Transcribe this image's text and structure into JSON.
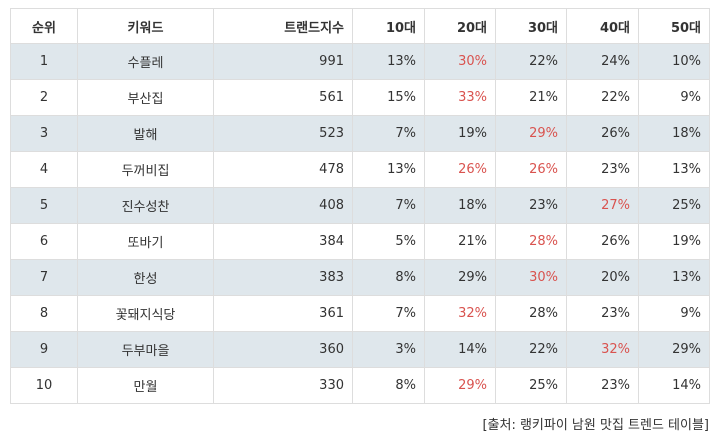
{
  "table": {
    "columns": [
      "순위",
      "키워드",
      "트랜드지수",
      "10대",
      "20대",
      "30대",
      "40대",
      "50대"
    ],
    "rows": [
      {
        "rank": "1",
        "keyword": "수플레",
        "index": "991",
        "a10": "13%",
        "a20": "30%",
        "a30": "22%",
        "a40": "24%",
        "a50": "10%",
        "max": "a20"
      },
      {
        "rank": "2",
        "keyword": "부산집",
        "index": "561",
        "a10": "15%",
        "a20": "33%",
        "a30": "21%",
        "a40": "22%",
        "a50": "9%",
        "max": "a20"
      },
      {
        "rank": "3",
        "keyword": "발해",
        "index": "523",
        "a10": "7%",
        "a20": "19%",
        "a30": "29%",
        "a40": "26%",
        "a50": "18%",
        "max": "a30"
      },
      {
        "rank": "4",
        "keyword": "두꺼비집",
        "index": "478",
        "a10": "13%",
        "a20": "26%",
        "a30": "26%",
        "a40": "23%",
        "a50": "13%",
        "max": "a20,a30"
      },
      {
        "rank": "5",
        "keyword": "진수성찬",
        "index": "408",
        "a10": "7%",
        "a20": "18%",
        "a30": "23%",
        "a40": "27%",
        "a50": "25%",
        "max": "a40"
      },
      {
        "rank": "6",
        "keyword": "또바기",
        "index": "384",
        "a10": "5%",
        "a20": "21%",
        "a30": "28%",
        "a40": "26%",
        "a50": "19%",
        "max": "a30"
      },
      {
        "rank": "7",
        "keyword": "한성",
        "index": "383",
        "a10": "8%",
        "a20": "29%",
        "a30": "30%",
        "a40": "20%",
        "a50": "13%",
        "max": "a30"
      },
      {
        "rank": "8",
        "keyword": "꽃돼지식당",
        "index": "361",
        "a10": "7%",
        "a20": "32%",
        "a30": "28%",
        "a40": "23%",
        "a50": "9%",
        "max": "a20"
      },
      {
        "rank": "9",
        "keyword": "두부마을",
        "index": "360",
        "a10": "3%",
        "a20": "14%",
        "a30": "22%",
        "a40": "32%",
        "a50": "29%",
        "max": "a40"
      },
      {
        "rank": "10",
        "keyword": "만월",
        "index": "330",
        "a10": "8%",
        "a20": "29%",
        "a30": "25%",
        "a40": "23%",
        "a50": "14%",
        "max": "a20"
      }
    ]
  },
  "colors": {
    "highlight": "#d9534f",
    "row_stripe": "#dfe7ec",
    "border": "#dddddd"
  },
  "source": "[출처: 랭키파이 남원 맛집 트렌드 테이블]"
}
